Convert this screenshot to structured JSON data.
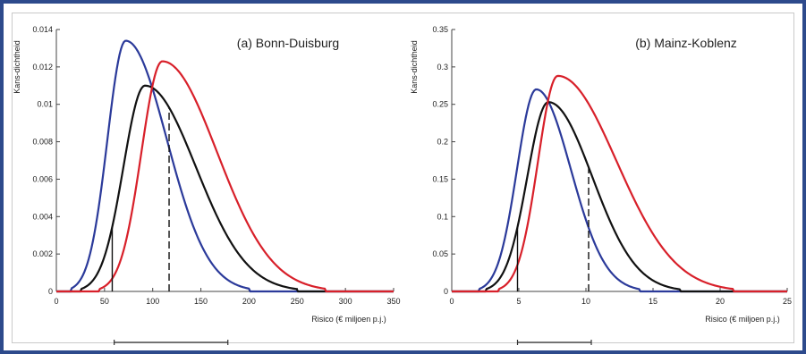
{
  "colors": {
    "frame": "#2d4a8c",
    "blue": "#2b3a9a",
    "black": "#111111",
    "red": "#d8202a"
  },
  "chart_data": [
    {
      "type": "line",
      "title": "(a) Bonn-Duisburg",
      "xlabel": "Risico (€ miljoen p.j.)",
      "ylabel": "Kans-dichtheid",
      "xlim": [
        0,
        350
      ],
      "ylim": [
        0,
        0.014
      ],
      "x_ticks": [
        "0",
        "50",
        "100",
        "150",
        "200",
        "250",
        "300",
        "350"
      ],
      "y_ticks": [
        "0",
        "0.002",
        "0.004",
        "0.006",
        "0.008",
        "0.01",
        "0.012",
        "0.014"
      ],
      "series": [
        {
          "color": "#2b3a9a",
          "mode": 72,
          "peak": 0.0134,
          "x_start": 15,
          "x_end": 200
        },
        {
          "color": "#111111",
          "mode": 92,
          "peak": 0.011,
          "x_start": 25,
          "x_end": 250
        },
        {
          "color": "#d8202a",
          "mode": 110,
          "peak": 0.0123,
          "x_start": 45,
          "x_end": 280
        }
      ],
      "vlines": [
        {
          "x": 58,
          "style": "solid"
        },
        {
          "x": 117,
          "style": "dashed"
        }
      ],
      "range_bar": [
        60,
        178
      ]
    },
    {
      "type": "line",
      "title": "(b) Mainz-Koblenz",
      "xlabel": "Risico (€ miljoen p.j.)",
      "ylabel": "Kans-dichtheid",
      "xlim": [
        0,
        25
      ],
      "ylim": [
        0,
        0.35
      ],
      "x_ticks": [
        "0",
        "5",
        "10",
        "15",
        "20",
        "25"
      ],
      "y_ticks": [
        "0",
        "0.05",
        "0.1",
        "0.15",
        "0.2",
        "0.25",
        "0.3",
        "0.35"
      ],
      "series": [
        {
          "color": "#2b3a9a",
          "mode": 6.3,
          "peak": 0.27,
          "x_start": 2,
          "x_end": 14
        },
        {
          "color": "#111111",
          "mode": 7.2,
          "peak": 0.253,
          "x_start": 2.5,
          "x_end": 17
        },
        {
          "color": "#d8202a",
          "mode": 7.9,
          "peak": 0.288,
          "x_start": 3.5,
          "x_end": 21
        }
      ],
      "vlines": [
        {
          "x": 4.9,
          "style": "solid"
        },
        {
          "x": 10.2,
          "style": "dashed"
        }
      ],
      "range_bar": [
        4.9,
        10.4
      ]
    }
  ]
}
